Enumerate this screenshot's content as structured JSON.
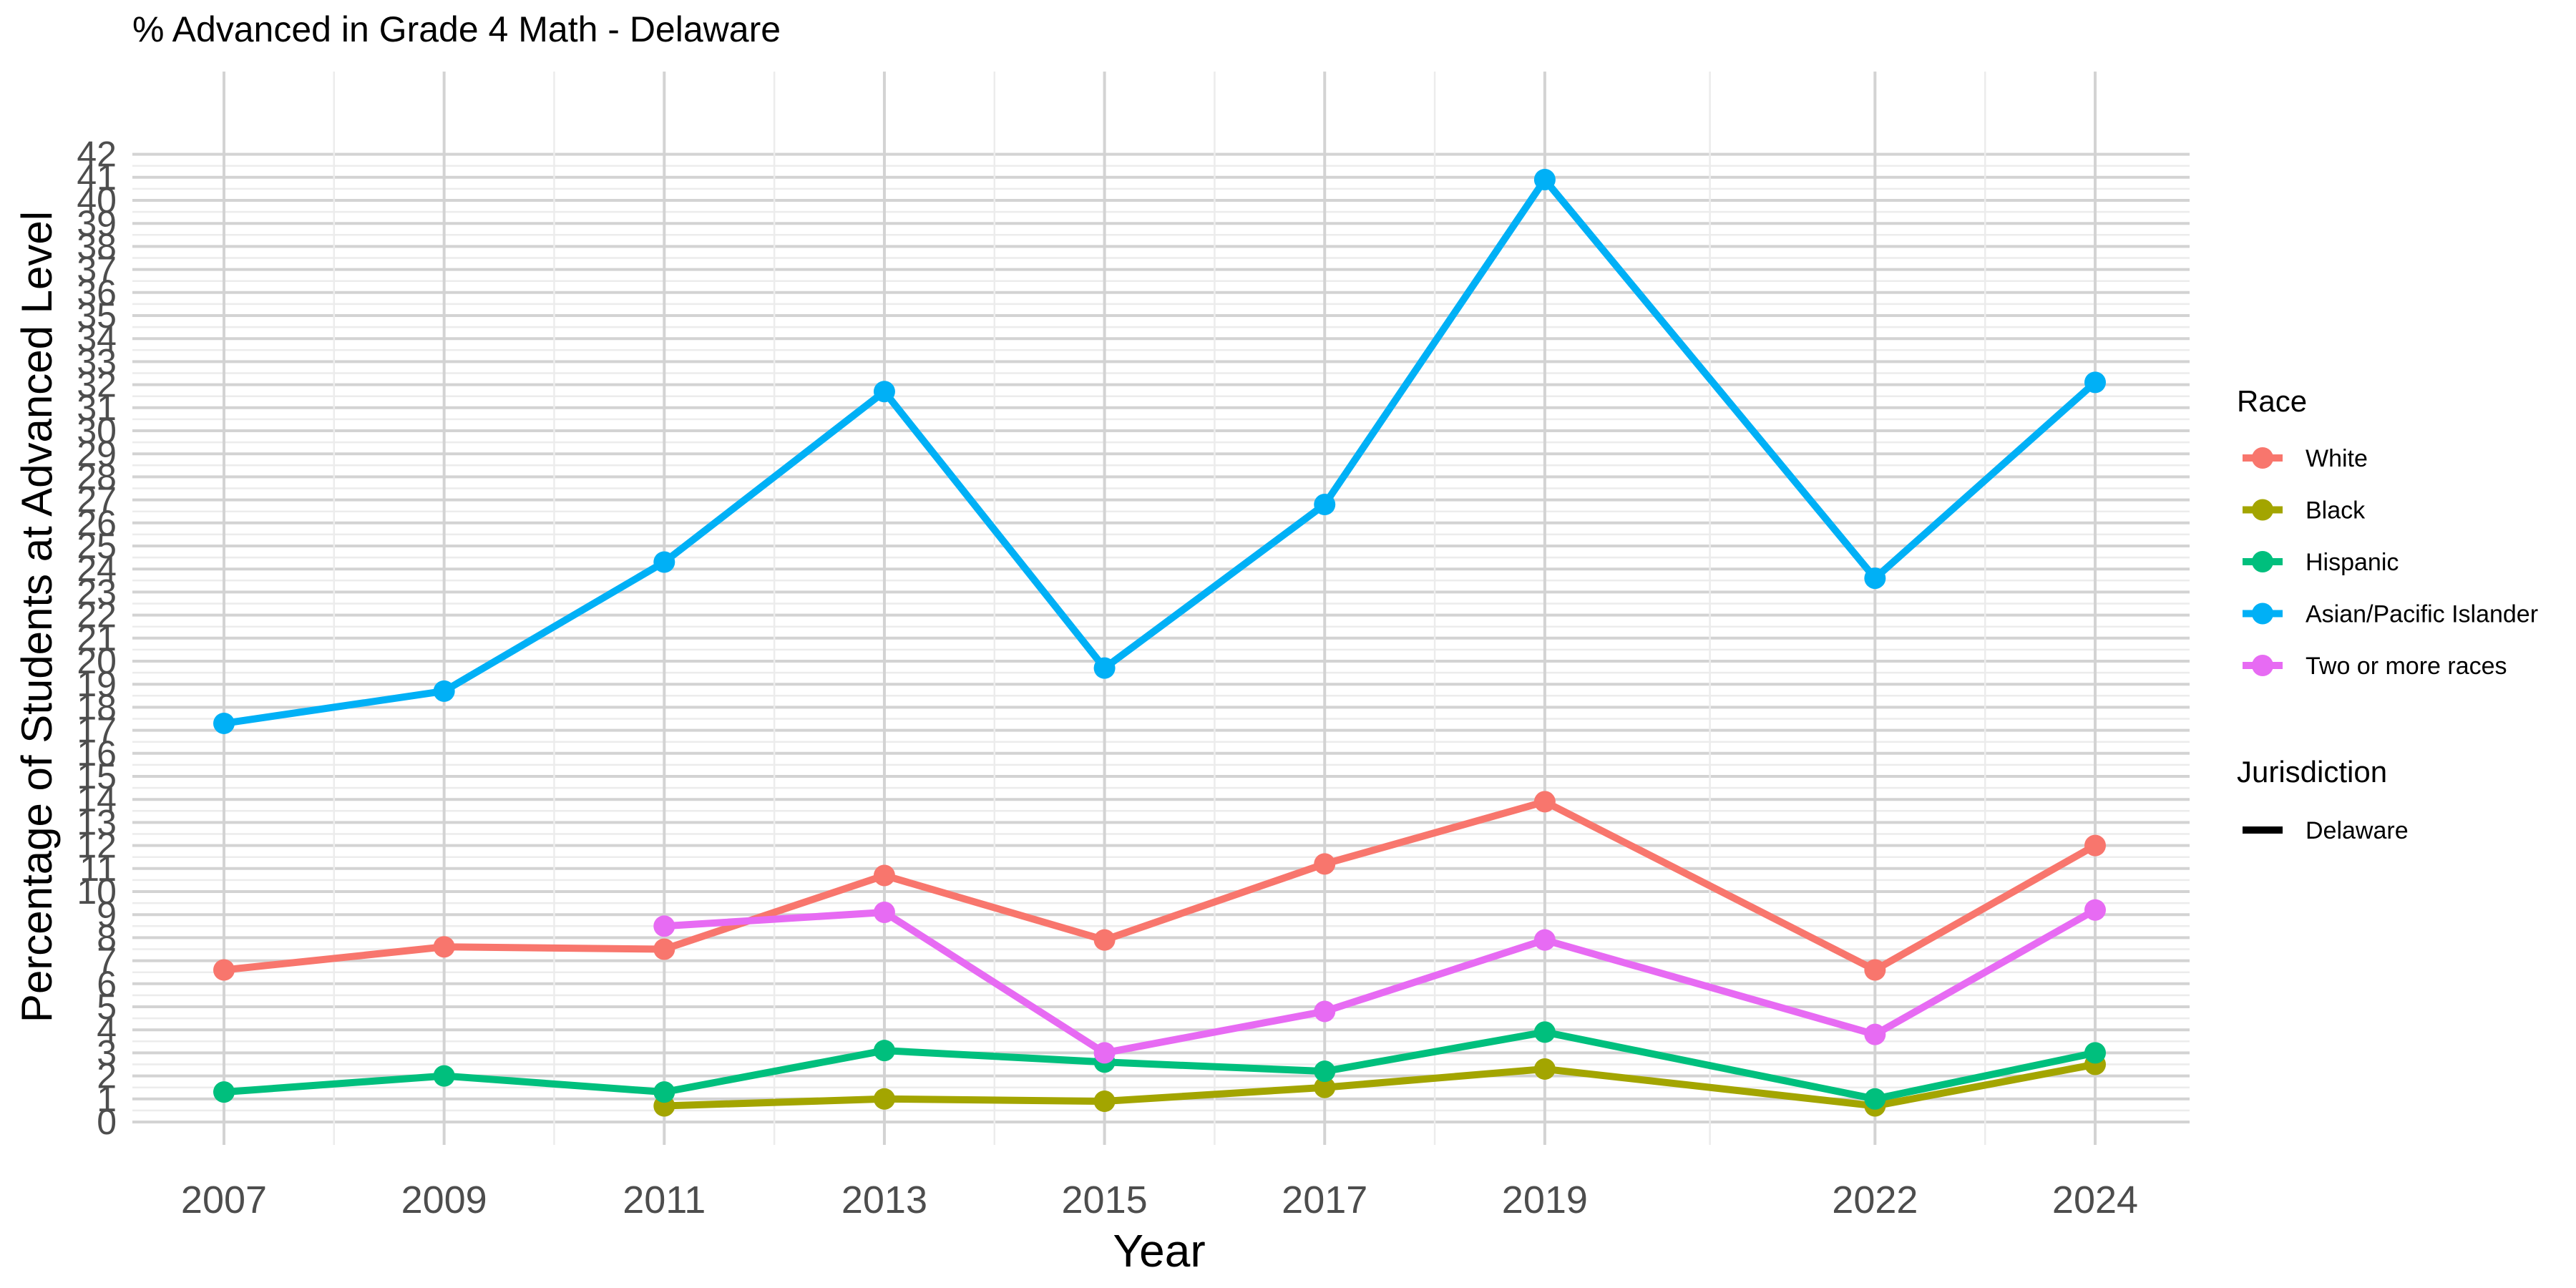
{
  "chart_data": {
    "type": "line",
    "title": "% Advanced in Grade 4 Math - Delaware",
    "xlabel": "Year",
    "ylabel": "Percentage of Students at Advanced Level",
    "x": [
      2007,
      2009,
      2011,
      2013,
      2015,
      2017,
      2019,
      2022,
      2024
    ],
    "xlim": [
      2007,
      2024
    ],
    "ylim": [
      0,
      42
    ],
    "y_ticks": [
      0,
      1,
      2,
      3,
      4,
      5,
      6,
      7,
      8,
      9,
      10,
      11,
      12,
      13,
      14,
      15,
      16,
      17,
      18,
      19,
      20,
      21,
      22,
      23,
      24,
      25,
      26,
      27,
      28,
      29,
      30,
      31,
      32,
      33,
      34,
      35,
      36,
      37,
      38,
      39,
      40,
      41,
      42
    ],
    "grid": true,
    "legend_position": "right",
    "legend": {
      "race_title": "Race",
      "jurisdiction_title": "Jurisdiction",
      "jurisdiction_items": [
        {
          "name": "Delaware",
          "color": "#000000"
        }
      ]
    },
    "series": [
      {
        "name": "White",
        "color": "#F8766D",
        "values": [
          6.6,
          7.6,
          7.5,
          10.7,
          7.9,
          11.2,
          13.9,
          6.6,
          12.0
        ]
      },
      {
        "name": "Black",
        "color": "#A3A500",
        "values": [
          null,
          null,
          0.7,
          1.0,
          0.9,
          1.5,
          2.3,
          0.7,
          2.5
        ]
      },
      {
        "name": "Hispanic",
        "color": "#00BF7D",
        "values": [
          1.3,
          2.0,
          1.3,
          3.1,
          2.6,
          2.2,
          3.9,
          1.0,
          3.0
        ]
      },
      {
        "name": "Asian/Pacific Islander",
        "color": "#00B0F6",
        "values": [
          17.3,
          18.7,
          24.3,
          31.7,
          19.7,
          26.8,
          40.9,
          23.6,
          32.1
        ]
      },
      {
        "name": "Two or more races",
        "color": "#E76BF3",
        "values": [
          null,
          null,
          8.5,
          9.1,
          3.0,
          4.8,
          7.9,
          3.8,
          9.2
        ]
      }
    ]
  }
}
